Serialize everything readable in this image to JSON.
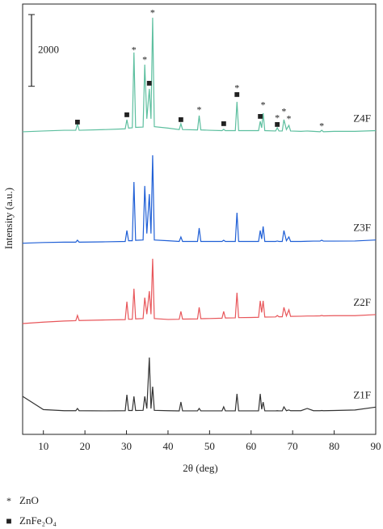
{
  "chart_data": {
    "type": "line",
    "xlabel": "2θ (deg)",
    "ylabel": "Intensity (a.u.)",
    "scale_bar": 2000,
    "xlim": [
      5,
      90
    ],
    "xticks": [
      10,
      20,
      30,
      40,
      50,
      60,
      70,
      80,
      90
    ],
    "ylim": [
      0,
      12000
    ],
    "x": [
      5,
      10,
      15,
      17.8,
      18.2,
      18.6,
      25,
      29.7,
      30.1,
      30.5,
      31.4,
      31.8,
      32.2,
      34,
      34.4,
      34.9,
      35.5,
      35.9,
      36.3,
      36.7,
      40,
      42.7,
      43.1,
      43.5,
      47.1,
      47.5,
      47.9,
      50,
      53,
      53.4,
      53.8,
      56.2,
      56.6,
      57,
      60,
      61.8,
      62.2,
      62.55,
      62.9,
      63.3,
      65.9,
      66.3,
      66.7,
      67.5,
      67.9,
      68.5,
      69.1,
      69.5,
      72,
      73.5,
      75,
      76.6,
      77,
      77.4,
      80,
      85,
      90
    ],
    "series": [
      {
        "name": "Z4F",
        "color": "#5dbf9f",
        "values": [
          8437,
          8460,
          8480,
          8480,
          8663,
          8480,
          8500,
          8520,
          8776,
          8540,
          8550,
          10648,
          8560,
          8570,
          10310,
          8800,
          9633,
          8800,
          11618,
          8580,
          8540,
          8500,
          8663,
          8500,
          8490,
          8889,
          8490,
          8480,
          8470,
          8505,
          8470,
          8470,
          9272,
          8470,
          8470,
          8470,
          8731,
          8550,
          8956,
          8470,
          8460,
          8550,
          8460,
          8460,
          8776,
          8500,
          8618,
          8460,
          8450,
          8460,
          8450,
          8440,
          8480,
          8440,
          8450,
          8450,
          8470
        ]
      },
      {
        "name": "Z3F",
        "color": "#1f5fd6",
        "values": [
          5330,
          5350,
          5360,
          5360,
          5414,
          5360,
          5370,
          5380,
          5685,
          5400,
          5400,
          7038,
          5410,
          5420,
          6926,
          5600,
          6700,
          5600,
          7783,
          5420,
          5400,
          5380,
          5505,
          5380,
          5380,
          5753,
          5380,
          5380,
          5380,
          5414,
          5380,
          5380,
          6181,
          5380,
          5380,
          5380,
          5685,
          5450,
          5798,
          5380,
          5380,
          5392,
          5380,
          5380,
          5685,
          5400,
          5505,
          5380,
          5380,
          5385,
          5390,
          5390,
          5414,
          5390,
          5390,
          5392,
          5420
        ]
      },
      {
        "name": "Z2F",
        "color": "#e8565a",
        "values": [
          3091,
          3130,
          3160,
          3170,
          3316,
          3175,
          3190,
          3200,
          3700,
          3210,
          3210,
          4061,
          3220,
          3230,
          3813,
          3350,
          3993,
          3350,
          4896,
          3230,
          3204,
          3210,
          3429,
          3215,
          3220,
          3542,
          3225,
          3230,
          3240,
          3429,
          3245,
          3250,
          3948,
          3255,
          3260,
          3265,
          3722,
          3400,
          3722,
          3270,
          3275,
          3316,
          3280,
          3280,
          3542,
          3300,
          3474,
          3290,
          3295,
          3300,
          3300,
          3305,
          3316,
          3305,
          3310,
          3310,
          3340
        ]
      },
      {
        "name": "Z1F",
        "color": "#333333",
        "values": [
          1060,
          690,
          660,
          660,
          722,
          660,
          655,
          660,
          1105,
          665,
          665,
          1060,
          665,
          670,
          1060,
          720,
          2143,
          720,
          1331,
          670,
          660,
          655,
          902,
          655,
          655,
          722,
          655,
          655,
          655,
          767,
          655,
          655,
          1128,
          655,
          655,
          655,
          1128,
          700,
          900,
          655,
          655,
          660,
          655,
          655,
          767,
          660,
          680,
          660,
          660,
          722,
          660,
          660,
          665,
          660,
          665,
          680,
          760
        ]
      }
    ],
    "phases": [
      {
        "name": "ZnO",
        "symbol": "*",
        "x": [
          31.8,
          34.4,
          36.3,
          47.5,
          56.6,
          62.9,
          66.3,
          67.9,
          69.1,
          77
        ],
        "y": [
          10693,
          10423,
          11731,
          9024,
          9633,
          9159,
          8799,
          8979,
          8776,
          8573
        ]
      },
      {
        "name": "ZnFe₂O₄",
        "symbol": "■",
        "x": [
          18.2,
          30.1,
          35.5,
          43.1,
          53.4,
          56.6,
          62.2,
          66.3
        ],
        "y": [
          8687,
          8889,
          9768,
          8753,
          8641,
          9453,
          8844,
          8618
        ]
      }
    ]
  }
}
